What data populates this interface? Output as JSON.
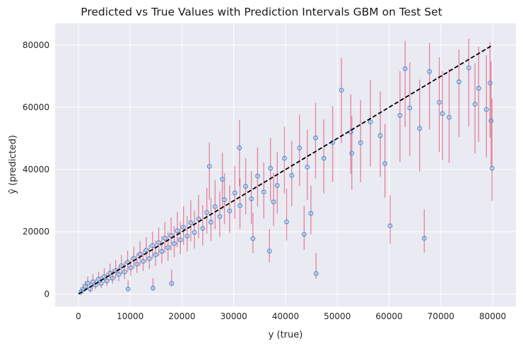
{
  "chart_data": {
    "type": "scatter",
    "title": "Predicted vs True Values with Prediction Intervals GBM on Test Set",
    "xlabel": "y (true)",
    "ylabel": "ŷ (predicted)",
    "xlim": [
      -4500,
      84500
    ],
    "ylim": [
      -4000,
      87000
    ],
    "xticks": [
      0,
      10000,
      20000,
      30000,
      40000,
      50000,
      60000,
      70000,
      80000
    ],
    "yticks": [
      0,
      20000,
      40000,
      60000,
      80000
    ],
    "grid": true,
    "legend": "none",
    "reference_line": {
      "from": [
        0,
        0
      ],
      "to": [
        80000,
        80000
      ],
      "style": "dashed",
      "color": "#000000"
    },
    "colors": {
      "point_edge": "#4a9fe0",
      "interval": "#dc143c",
      "background": "#eaeaf2",
      "grid": "#ffffff"
    },
    "points": [
      [
        500,
        800,
        -400,
        2200
      ],
      [
        900,
        1500,
        200,
        3200
      ],
      [
        1300,
        2400,
        900,
        4100
      ],
      [
        1800,
        3500,
        1800,
        5600
      ],
      [
        2300,
        1600,
        500,
        3800
      ],
      [
        2800,
        3900,
        2200,
        6400
      ],
      [
        3300,
        2900,
        1500,
        4800
      ],
      [
        3900,
        4800,
        2900,
        7200
      ],
      [
        4400,
        3400,
        1900,
        5900
      ],
      [
        5000,
        5600,
        3600,
        8400
      ],
      [
        5500,
        4200,
        2500,
        6800
      ],
      [
        6100,
        6700,
        4300,
        9800
      ],
      [
        6600,
        5100,
        3300,
        7900
      ],
      [
        7200,
        7600,
        5000,
        10900
      ],
      [
        7800,
        6300,
        4100,
        9000
      ],
      [
        8300,
        9100,
        6200,
        12600
      ],
      [
        8900,
        7100,
        4800,
        10400
      ],
      [
        9500,
        10200,
        7100,
        13900
      ],
      [
        10100,
        8400,
        5900,
        11600
      ],
      [
        10700,
        11500,
        8200,
        15200
      ],
      [
        11300,
        9600,
        6800,
        13100
      ],
      [
        11900,
        12800,
        9100,
        17000
      ],
      [
        12500,
        10500,
        7400,
        14200
      ],
      [
        13100,
        14100,
        10200,
        18300
      ],
      [
        13700,
        11400,
        8100,
        15600
      ],
      [
        14300,
        15600,
        11300,
        20100
      ],
      [
        14900,
        12600,
        9000,
        17300
      ],
      [
        15500,
        16500,
        12100,
        21400
      ],
      [
        16100,
        13700,
        9800,
        18600
      ],
      [
        16700,
        17900,
        13200,
        23100
      ],
      [
        17300,
        14900,
        10700,
        20200
      ],
      [
        17900,
        18800,
        13900,
        24600
      ],
      [
        18500,
        16200,
        11800,
        21800
      ],
      [
        19100,
        20300,
        15100,
        26400
      ],
      [
        19700,
        17400,
        12800,
        23300
      ],
      [
        20300,
        21400,
        15800,
        28200
      ],
      [
        21000,
        18600,
        13700,
        25100
      ],
      [
        21700,
        22900,
        16900,
        30200
      ],
      [
        22400,
        19800,
        14600,
        26800
      ],
      [
        23200,
        24100,
        17900,
        31800
      ],
      [
        24000,
        21100,
        15600,
        28600
      ],
      [
        24800,
        26200,
        19400,
        34100
      ],
      [
        25600,
        23100,
        17100,
        30800
      ],
      [
        26400,
        28100,
        20800,
        36600
      ],
      [
        27300,
        24900,
        18400,
        32900
      ],
      [
        28200,
        30300,
        22400,
        38800
      ],
      [
        29200,
        26700,
        19700,
        34900
      ],
      [
        30200,
        32500,
        24100,
        41200
      ],
      [
        31200,
        28400,
        21000,
        37200
      ],
      [
        32300,
        34600,
        25600,
        43700
      ],
      [
        33400,
        30600,
        22600,
        39500
      ],
      [
        34600,
        37900,
        28100,
        47100
      ],
      [
        35800,
        32800,
        24300,
        42300
      ],
      [
        37100,
        40400,
        29900,
        50100
      ],
      [
        38400,
        34900,
        25800,
        45600
      ],
      [
        39800,
        43600,
        32300,
        53800
      ],
      [
        41200,
        38100,
        28200,
        49200
      ],
      [
        42700,
        46900,
        34700,
        57600
      ],
      [
        44200,
        40800,
        30200,
        52800
      ],
      [
        45800,
        50200,
        37200,
        61400
      ],
      [
        47400,
        43600,
        32300,
        56100
      ],
      [
        49100,
        48700,
        36000,
        60400
      ],
      [
        50800,
        65500,
        48500,
        75800
      ],
      [
        52600,
        52100,
        38600,
        64200
      ],
      [
        54500,
        48600,
        36000,
        62300
      ],
      [
        56400,
        55300,
        40900,
        68700
      ],
      [
        58300,
        50900,
        37700,
        65100
      ],
      [
        60200,
        21900,
        16200,
        31800
      ],
      [
        62100,
        57400,
        42500,
        71600
      ],
      [
        64000,
        59800,
        44300,
        74400
      ],
      [
        65900,
        53200,
        39400,
        68900
      ],
      [
        66800,
        17900,
        13300,
        27200
      ],
      [
        67800,
        71500,
        52900,
        80600
      ],
      [
        69700,
        61600,
        45600,
        76100
      ],
      [
        71600,
        56800,
        42100,
        72300
      ],
      [
        73500,
        68200,
        50500,
        78600
      ],
      [
        75400,
        72700,
        53800,
        82000
      ],
      [
        77300,
        66100,
        48900,
        79500
      ],
      [
        78800,
        59300,
        43900,
        76700
      ],
      [
        79900,
        40400,
        29900,
        62800
      ],
      [
        79700,
        55700,
        41200,
        74800
      ],
      [
        79500,
        67800,
        50200,
        80900
      ],
      [
        45900,
        6600,
        4900,
        13200
      ],
      [
        43600,
        19200,
        14200,
        28300
      ],
      [
        40200,
        23200,
        17200,
        33800
      ],
      [
        36900,
        13800,
        10200,
        20900
      ],
      [
        33700,
        17800,
        13200,
        26100
      ],
      [
        18000,
        3400,
        2500,
        7800
      ],
      [
        14400,
        1900,
        1400,
        5100
      ],
      [
        9600,
        1600,
        1200,
        4300
      ],
      [
        25300,
        41000,
        30400,
        48700
      ],
      [
        31100,
        47000,
        34800,
        55900
      ],
      [
        37700,
        29600,
        21900,
        38900
      ],
      [
        44900,
        25900,
        19200,
        34800
      ],
      [
        52800,
        45200,
        33500,
        57300
      ],
      [
        59200,
        41900,
        31000,
        54600
      ],
      [
        63100,
        72400,
        53600,
        81400
      ],
      [
        70300,
        58000,
        43000,
        71600
      ],
      [
        76600,
        61000,
        45200,
        74200
      ],
      [
        27800,
        36900,
        27300,
        45400
      ]
    ]
  }
}
